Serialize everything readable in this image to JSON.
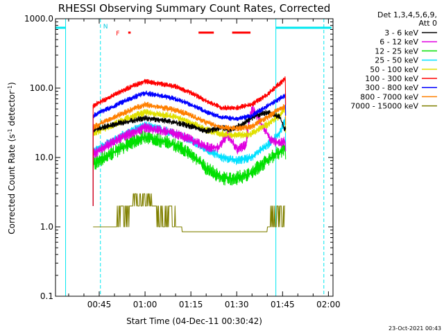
{
  "chart_data": {
    "type": "line",
    "title": "RHESSI Observing Summary Count Rates, Corrected",
    "xlabel": "Start Time (04-Dec-11 00:30:42)",
    "ylabel_main": "Corrected Count Rate (s",
    "ylabel_sup1": "-1",
    "ylabel_mid": " detector",
    "ylabel_sup2": "-1",
    "ylabel_end": ")",
    "y_scale": "log",
    "ylim": [
      0.1,
      1000
    ],
    "y_ticks": [
      "0.1",
      "1.0",
      "10.0",
      "100.0",
      "1000.0"
    ],
    "xlim_minutes": [
      30.7,
      121.5
    ],
    "x_ticks": [
      {
        "label": "00:45",
        "min": 45
      },
      {
        "label": "01:00",
        "min": 60
      },
      {
        "label": "01:15",
        "min": 75
      },
      {
        "label": "01:30",
        "min": 90
      },
      {
        "label": "01:45",
        "min": 105
      },
      {
        "label": "02:00",
        "min": 120
      }
    ],
    "legend_header": [
      "Det 1,3,4,5,6,9,",
      "Att 0"
    ],
    "legend_position": "right",
    "footer_date": "23-Oct-2021 00:43",
    "flag_labels": {
      "night": "N",
      "flare": "F"
    },
    "night_intervals": [
      [
        30.7,
        34.0
      ],
      [
        102.8,
        121.0
      ]
    ],
    "saa_boundaries": [
      45.4,
      118.5
    ],
    "night_boundaries": [
      34.0,
      102.8
    ],
    "flare_intervals": [
      [
        54.5,
        55.3
      ],
      [
        77.5,
        82.5
      ],
      [
        88.5,
        94.5
      ]
    ],
    "series": [
      {
        "name": "3 - 6 keV",
        "color": "#000000",
        "x": [
          43,
          50,
          60,
          70,
          80,
          85,
          88,
          92,
          96,
          100,
          104,
          105.5,
          106
        ],
        "y": [
          25,
          30,
          37,
          32,
          24,
          27,
          25,
          30,
          40,
          45,
          38,
          26,
          26
        ]
      },
      {
        "name": "6 - 12 keV",
        "color": "#e000e0",
        "x": [
          43,
          50,
          60,
          70,
          80,
          84,
          87,
          90,
          93,
          95,
          98,
          101,
          104,
          106
        ],
        "y": [
          11,
          17,
          27,
          22,
          14,
          14,
          21,
          13,
          15,
          50,
          30,
          18,
          16,
          17
        ]
      },
      {
        "name": "12 - 25 keV",
        "color": "#00e000",
        "x": [
          43,
          50,
          60,
          70,
          80,
          85,
          90,
          95,
          100,
          104,
          106
        ],
        "y": [
          8,
          12,
          20,
          15,
          7,
          5,
          5,
          6,
          9,
          12,
          14
        ]
      },
      {
        "name": "25 - 50 keV",
        "color": "#00e0ff",
        "x": [
          43,
          50,
          60,
          70,
          80,
          85,
          90,
          95,
          100,
          104,
          106
        ],
        "y": [
          12,
          18,
          29,
          22,
          13,
          10,
          9,
          10,
          15,
          22,
          35
        ]
      },
      {
        "name": "50 - 100 keV",
        "color": "#e0e000",
        "x": [
          43,
          50,
          60,
          70,
          80,
          85,
          90,
          95,
          100,
          104,
          106
        ],
        "y": [
          22,
          30,
          45,
          38,
          25,
          22,
          21,
          22,
          30,
          40,
          52
        ]
      },
      {
        "name": "100 - 300 keV",
        "color": "#ff0000",
        "x": [
          43,
          50,
          60,
          70,
          80,
          85,
          90,
          95,
          100,
          104,
          106
        ],
        "y": [
          55,
          80,
          125,
          105,
          65,
          52,
          52,
          58,
          80,
          115,
          140
        ]
      },
      {
        "name": "300 - 800 keV",
        "color": "#0000ff",
        "x": [
          43,
          50,
          60,
          70,
          80,
          85,
          90,
          95,
          100,
          104,
          106
        ],
        "y": [
          40,
          55,
          85,
          70,
          45,
          38,
          36,
          40,
          55,
          70,
          80
        ]
      },
      {
        "name": "800 - 7000 keV",
        "color": "#ff8000",
        "x": [
          43,
          50,
          60,
          70,
          80,
          85,
          90,
          95,
          100,
          104,
          106
        ],
        "y": [
          27,
          38,
          58,
          48,
          32,
          27,
          26,
          28,
          38,
          50,
          55
        ]
      },
      {
        "name": "7000 - 15000 keV",
        "color": "#808000",
        "x": [
          43,
          50,
          52,
          60,
          65,
          70,
          72,
          75,
          100,
          102,
          104,
          106
        ],
        "y": [
          1,
          1,
          2,
          3,
          2,
          1.3,
          1,
          0.85,
          0.85,
          2,
          1.5,
          2
        ]
      }
    ]
  }
}
